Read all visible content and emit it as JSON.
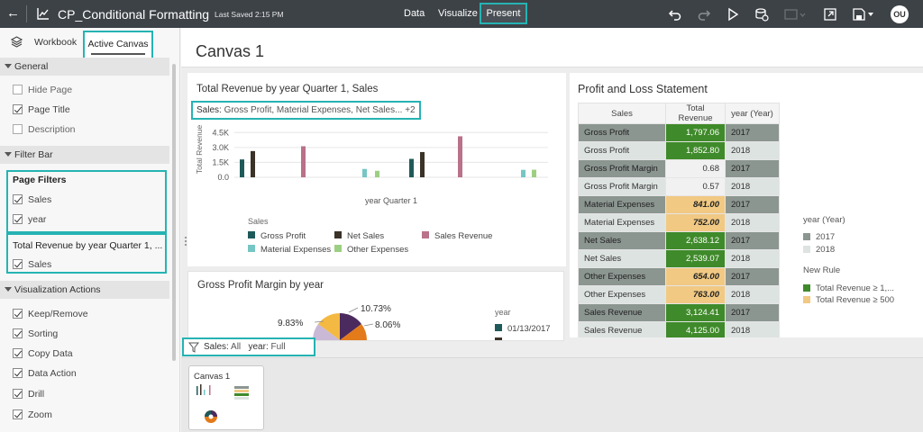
{
  "topbar": {
    "title": "CP_Conditional Formatting",
    "last_saved": "Last Saved 2:15 PM",
    "nav": [
      "Data",
      "Visualize",
      "Present"
    ],
    "avatar": "OU"
  },
  "leftpanel": {
    "tabs": [
      "Workbook",
      "Active Canvas"
    ],
    "sections": {
      "general": "General",
      "filter_bar": "Filter Bar",
      "viz_actions": "Visualization Actions"
    },
    "general_options": [
      {
        "label": "Hide Page",
        "checked": false
      },
      {
        "label": "Page Title",
        "checked": true
      },
      {
        "label": "Description",
        "checked": false
      }
    ],
    "page_filters_title": "Page Filters",
    "page_filters": [
      {
        "label": "Sales",
        "checked": true
      },
      {
        "label": "year",
        "checked": true
      }
    ],
    "viz_filter_title": "Total Revenue by year Quarter 1, ...",
    "viz_filters": [
      {
        "label": "Sales",
        "checked": true
      }
    ],
    "viz_action_options": [
      {
        "label": "Keep/Remove",
        "checked": true
      },
      {
        "label": "Sorting",
        "checked": true
      },
      {
        "label": "Copy Data",
        "checked": true
      },
      {
        "label": "Data Action",
        "checked": true
      },
      {
        "label": "Drill",
        "checked": true
      },
      {
        "label": "Zoom",
        "checked": true
      }
    ]
  },
  "canvas": {
    "title": "Canvas 1",
    "thumbnail_label": "Canvas 1",
    "bottom_filter": {
      "sales_label": "Sales:",
      "sales_value": "All",
      "year_label": "year:",
      "year_value": "Full Range"
    }
  },
  "revenue_chart": {
    "title": "Total Revenue by year Quarter 1, Sales",
    "filter_label": "Sales:",
    "filter_value": "Gross Profit, Material Expenses, Net Sales... +2",
    "ylabel": "Total Revenue",
    "xlabel": "year Quarter 1",
    "legend_title": "Sales",
    "legend": [
      {
        "name": "Gross Profit",
        "color": "#1f5a5a"
      },
      {
        "name": "Net Sales",
        "color": "#3b3228"
      },
      {
        "name": "Sales Revenue",
        "color": "#b97289"
      },
      {
        "name": "Material Expenses",
        "color": "#76c6c4"
      },
      {
        "name": "Other Expenses",
        "color": "#9ccf82"
      }
    ]
  },
  "chart_data": {
    "type": "bar",
    "title": "Total Revenue by year Quarter 1, Sales",
    "xlabel": "year Quarter 1",
    "ylabel": "Total Revenue",
    "yticks": [
      "4.5K",
      "3.0K",
      "1.5K",
      "0.0"
    ],
    "ylim": [
      0,
      5250
    ],
    "categories": [
      "Gross Profit",
      "Net Sales",
      "Sales Revenue",
      "Material Expenses",
      "Other Expenses"
    ],
    "groups": [
      {
        "values": [
          1797,
          2638,
          3124,
          841,
          654
        ]
      },
      {
        "values": [
          1853,
          2539,
          4125,
          752,
          763
        ]
      }
    ]
  },
  "margin_chart": {
    "title": "Gross Profit Margin by year",
    "labels": [
      "10.73%",
      "8.06%",
      "9.83%"
    ],
    "legend_title": "year",
    "legend": [
      {
        "name": "01/13/2017",
        "color": "#1f5a5a"
      }
    ]
  },
  "pl_statement": {
    "title": "Profit and Loss Statement",
    "headers": [
      "Sales",
      "Total Revenue",
      "year (Year)"
    ],
    "rows": [
      {
        "sales": "Gross Profit",
        "value": "1,797.06",
        "year": "2017",
        "fmt": "green"
      },
      {
        "sales": "Gross Profit",
        "value": "1,852.80",
        "year": "2018",
        "fmt": "green"
      },
      {
        "sales": "Gross Profit Margin",
        "value": "0.68",
        "year": "2017",
        "fmt": "plain"
      },
      {
        "sales": "Gross Profit Margin",
        "value": "0.57",
        "year": "2018",
        "fmt": "plain"
      },
      {
        "sales": "Material Expenses",
        "value": "841.00",
        "year": "2017",
        "fmt": "orange"
      },
      {
        "sales": "Material Expenses",
        "value": "752.00",
        "year": "2018",
        "fmt": "orange"
      },
      {
        "sales": "Net Sales",
        "value": "2,638.12",
        "year": "2017",
        "fmt": "green"
      },
      {
        "sales": "Net Sales",
        "value": "2,539.07",
        "year": "2018",
        "fmt": "green"
      },
      {
        "sales": "Other Expenses",
        "value": "654.00",
        "year": "2017",
        "fmt": "orange"
      },
      {
        "sales": "Other Expenses",
        "value": "763.00",
        "year": "2018",
        "fmt": "orange"
      },
      {
        "sales": "Sales Revenue",
        "value": "3,124.41",
        "year": "2017",
        "fmt": "green"
      },
      {
        "sales": "Sales Revenue",
        "value": "4,125.00",
        "year": "2018",
        "fmt": "green"
      }
    ],
    "year_legend_title": "year (Year)",
    "year_legend": [
      {
        "name": "2017",
        "color": "#8c9691"
      },
      {
        "name": "2018",
        "color": "#dde3e0"
      }
    ],
    "rule_legend_title": "New Rule",
    "rule_legend": [
      {
        "name": "Total Revenue ≥ 1,...",
        "color": "#3f8a2a"
      },
      {
        "name": "Total Revenue ≥ 500",
        "color": "#f1c983"
      }
    ]
  }
}
